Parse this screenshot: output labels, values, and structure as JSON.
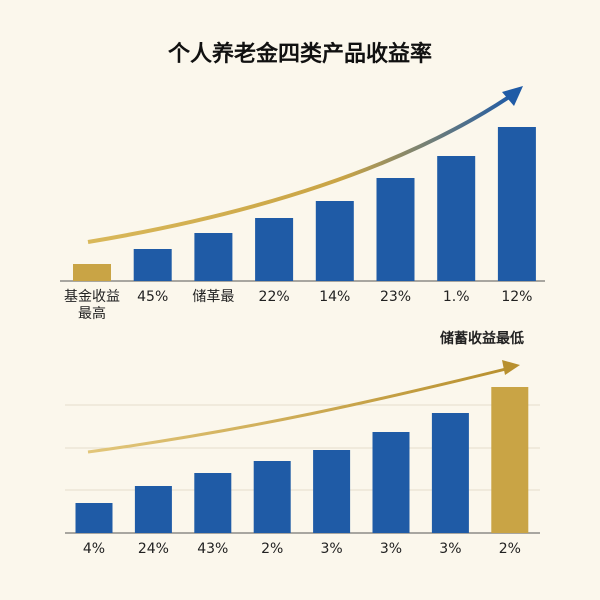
{
  "chart_data": [
    {
      "type": "bar",
      "title": "个人养老金四类产品收益率",
      "categories": [
        "基金收益最高",
        "45%",
        "储革最",
        "22%",
        "14%",
        "23%",
        "1.%",
        "12%"
      ],
      "values": [
        17,
        32,
        48,
        63,
        80,
        103,
        125,
        154
      ],
      "colors": [
        "#c9a445",
        "#1f5ba6",
        "#1f5ba6",
        "#1f5ba6",
        "#1f5ba6",
        "#1f5ba6",
        "#1f5ba6",
        "#1f5ba6"
      ]
    },
    {
      "type": "bar",
      "annotation": "储蓄收益最低",
      "categories": [
        "4%",
        "24%",
        "43%",
        "2%",
        "3%",
        "3%",
        "3%",
        "2%"
      ],
      "values": [
        30,
        47,
        60,
        72,
        83,
        101,
        120,
        146
      ],
      "colors": [
        "#1f5ba6",
        "#1f5ba6",
        "#1f5ba6",
        "#1f5ba6",
        "#1f5ba6",
        "#1f5ba6",
        "#1f5ba6",
        "#c9a445"
      ]
    }
  ]
}
